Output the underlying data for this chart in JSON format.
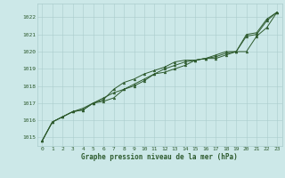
{
  "title": "Graphe pression niveau de la mer (hPa)",
  "bg_color": "#cce8e8",
  "grid_color": "#aacccc",
  "line_color": "#2d5a2d",
  "marker_color": "#2d5a2d",
  "xlim": [
    -0.5,
    23.5
  ],
  "ylim": [
    1014.5,
    1022.8
  ],
  "yticks": [
    1015,
    1016,
    1017,
    1018,
    1019,
    1020,
    1021,
    1022
  ],
  "xtick_labels": [
    "0",
    "1",
    "2",
    "3",
    "4",
    "5",
    "6",
    "7",
    "8",
    "9",
    "10",
    "11",
    "12",
    "13",
    "14",
    "15",
    "16",
    "17",
    "18",
    "19",
    "20",
    "21",
    "22",
    "23"
  ],
  "series1": [
    1014.8,
    1015.9,
    1016.2,
    1016.5,
    1016.6,
    1017.0,
    1017.1,
    1017.3,
    1017.8,
    1018.0,
    1018.3,
    1018.7,
    1018.8,
    1019.0,
    1019.2,
    1019.5,
    1019.6,
    1019.7,
    1019.9,
    1020.0,
    1020.9,
    1021.0,
    1021.8,
    1022.3
  ],
  "series2": [
    1014.8,
    1015.9,
    1016.2,
    1016.5,
    1016.7,
    1017.0,
    1017.2,
    1017.8,
    1018.2,
    1018.4,
    1018.7,
    1018.9,
    1019.1,
    1019.4,
    1019.5,
    1019.5,
    1019.6,
    1019.6,
    1019.8,
    1020.0,
    1020.0,
    1020.9,
    1021.4,
    1022.3
  ],
  "series3": [
    1014.8,
    1015.9,
    1016.2,
    1016.5,
    1016.6,
    1017.0,
    1017.3,
    1017.6,
    1017.8,
    1018.1,
    1018.4,
    1018.7,
    1019.0,
    1019.2,
    1019.4,
    1019.5,
    1019.6,
    1019.8,
    1020.0,
    1020.0,
    1021.0,
    1021.1,
    1021.9,
    1022.3
  ],
  "title_fontsize": 5.5,
  "tick_fontsize": 4.5,
  "linewidth": 0.7,
  "markersize": 2.0
}
